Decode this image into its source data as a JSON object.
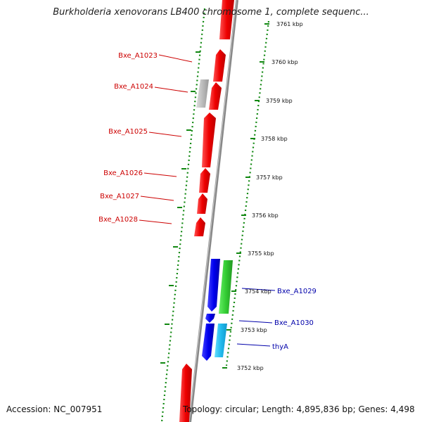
{
  "title": "Burkholderia xenovorans LB400 chromosome 1, complete sequenc...",
  "accession_label": "Accession: NC_007951",
  "summary_label": "Topology: circular; Length: 4,895,836 bp; Genes: 4,498",
  "scale_ticks": [
    "3761 kbp",
    "3760 kbp",
    "3759 kbp",
    "3758 kbp",
    "3757 kbp",
    "3756 kbp",
    "3755 kbp",
    "3754 kbp",
    "3753 kbp",
    "3752 kbp"
  ],
  "genes_left": [
    {
      "label": "Bxe_A1023",
      "color": "#cc0000"
    },
    {
      "label": "Bxe_A1024",
      "color": "#cc0000"
    },
    {
      "label": "Bxe_A1025",
      "color": "#cc0000"
    },
    {
      "label": "Bxe_A1026",
      "color": "#cc0000"
    },
    {
      "label": "Bxe_A1027",
      "color": "#cc0000"
    },
    {
      "label": "Bxe_A1028",
      "color": "#cc0000"
    }
  ],
  "genes_right": [
    {
      "label": "Bxe_A1029",
      "color": "#0000aa"
    },
    {
      "label": "Bxe_A1030",
      "color": "#0000aa"
    },
    {
      "label": "thyA",
      "color": "#0000aa"
    }
  ],
  "colors": {
    "reverse_strand": "#ee1111",
    "hypothetical": "#bbbbbb",
    "forward_strand": "#1111dd",
    "green_gene": "#33cc33",
    "cyan_gene": "#22bbee",
    "backbone": "#999999",
    "dotted_ring": "#118811"
  }
}
